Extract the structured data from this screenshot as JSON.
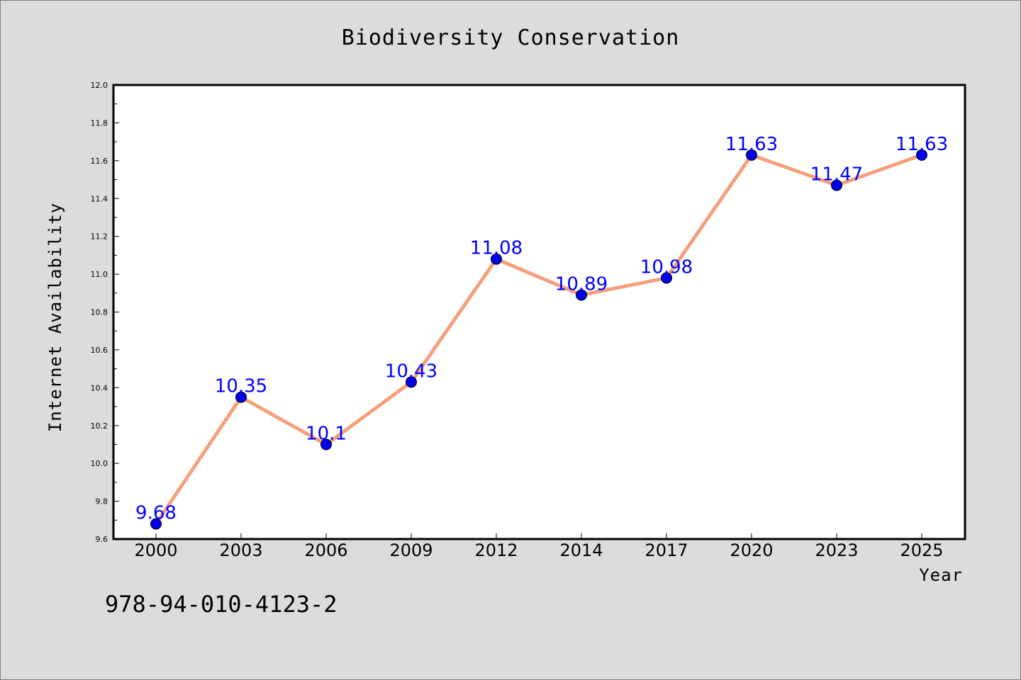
{
  "chart_data": {
    "type": "line",
    "title": "Biodiversity Conservation",
    "xlabel": "Year",
    "ylabel": "Internet Availability",
    "categories": [
      "2000",
      "2003",
      "2006",
      "2009",
      "2012",
      "2014",
      "2017",
      "2020",
      "2023",
      "2025"
    ],
    "series": [
      {
        "values": [
          9.68,
          10.35,
          10.1,
          10.43,
          11.08,
          10.89,
          10.98,
          11.63,
          11.47,
          11.63
        ],
        "labels": [
          "9.68",
          "10.35",
          "10.1",
          "10.43",
          "11.08",
          "10.89",
          "10.98",
          "11.63",
          "11.47",
          "11.63"
        ],
        "line_color": "#f4a07c",
        "marker_color": "#0000ee",
        "label_color": "#0000ff"
      }
    ],
    "ylim": [
      9.6,
      12.0
    ],
    "yticks": [
      "9.6",
      "9.8",
      "10.0",
      "10.2",
      "10.4",
      "10.6",
      "10.8",
      "11.0",
      "11.2",
      "11.4",
      "11.6",
      "11.8",
      "12.0"
    ],
    "grid": false,
    "legend": "none",
    "colors": {
      "background": "#dcdcdc",
      "plot_background": "#ffffff"
    }
  },
  "footnote": "978-94-010-4123-2"
}
